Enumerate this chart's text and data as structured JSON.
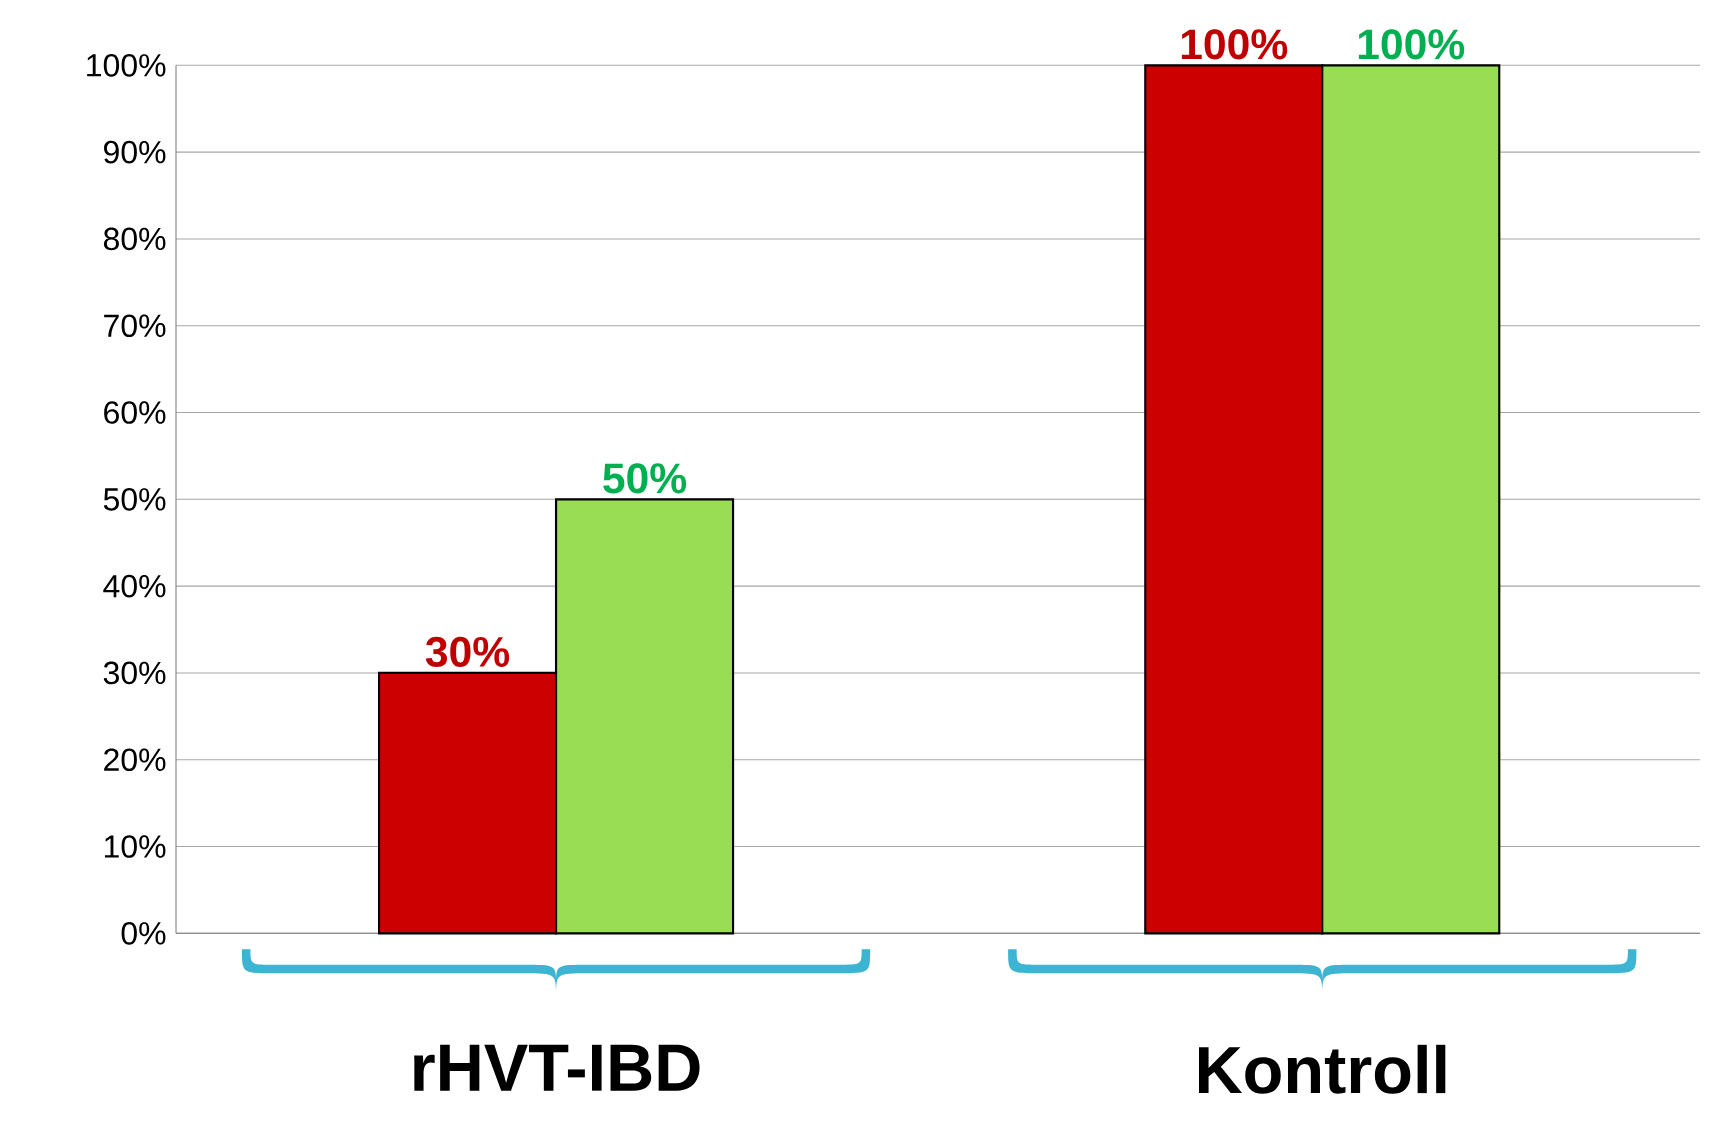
{
  "chart_data": {
    "type": "bar",
    "categories": [
      "rHVT-IBD",
      "Kontroll"
    ],
    "series": [
      {
        "color": "#cc0000",
        "values": [
          30,
          100
        ],
        "value_labels": [
          "30%",
          "100%"
        ]
      },
      {
        "color": "#99dd55",
        "values": [
          50,
          100
        ],
        "value_labels": [
          "50%",
          "100%"
        ]
      }
    ],
    "ylim": [
      0,
      100
    ],
    "yticks": [
      {
        "value": 0,
        "label": "0%"
      },
      {
        "value": 10,
        "label": "10%"
      },
      {
        "value": 20,
        "label": "20%"
      },
      {
        "value": 30,
        "label": "30%"
      },
      {
        "value": 40,
        "label": "40%"
      },
      {
        "value": 50,
        "label": "50%"
      },
      {
        "value": 60,
        "label": "60%"
      },
      {
        "value": 70,
        "label": "70%"
      },
      {
        "value": 80,
        "label": "80%"
      },
      {
        "value": 90,
        "label": "90%"
      },
      {
        "value": 100,
        "label": "100%"
      }
    ],
    "grid": "y"
  }
}
